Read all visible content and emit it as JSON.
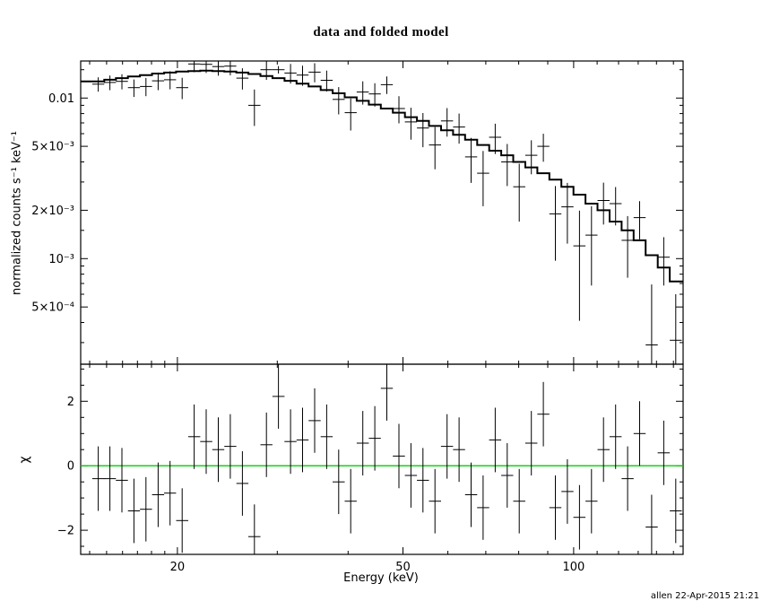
{
  "chart_data": {
    "type": "scatter",
    "title": "data and folded model",
    "xlabel": "Energy (keV)",
    "footer": "allen 22-Apr-2015 21:21",
    "legend": "none",
    "grid": "off",
    "x_axis": {
      "scale": "log",
      "range": [
        13.5,
        156
      ],
      "major_ticks": [
        {
          "value": 20,
          "label": "20"
        },
        {
          "value": 50,
          "label": "50"
        },
        {
          "value": 100,
          "label": "100"
        }
      ],
      "minor_ticks": [
        14,
        15,
        16,
        17,
        18,
        19,
        30,
        40,
        60,
        70,
        80,
        90,
        110,
        120,
        130,
        140,
        150
      ]
    },
    "spectrum_panel": {
      "ylabel": "normalized counts s⁻¹ keV⁻¹",
      "scale": "log",
      "range": [
        0.00022,
        0.017
      ],
      "major_ticks": [
        {
          "value": 0.01,
          "label": "0.01"
        },
        {
          "value": 0.005,
          "label": "5×10⁻³"
        },
        {
          "value": 0.002,
          "label": "2×10⁻³"
        },
        {
          "value": 0.001,
          "label": "10⁻³"
        },
        {
          "value": 0.0005,
          "label": "5×10⁻⁴"
        }
      ],
      "minor_ticks": [
        0.015,
        0.009,
        0.008,
        0.007,
        0.006,
        0.004,
        0.003,
        0.0015,
        0.0009,
        0.0008,
        0.0007,
        0.0006,
        0.0004,
        0.0003
      ],
      "bin_half_width_ratio": 1.0248,
      "energy": [
        14.5,
        15.2,
        15.96,
        16.76,
        17.6,
        18.49,
        19.41,
        20.39,
        21.41,
        22.48,
        23.61,
        24.79,
        26.04,
        27.34,
        28.71,
        30.15,
        31.66,
        33.25,
        34.92,
        36.67,
        38.5,
        40.43,
        42.46,
        44.59,
        46.82,
        49.17,
        51.63,
        54.22,
        56.94,
        59.79,
        62.79,
        65.94,
        69.24,
        72.71,
        76.35,
        80.18,
        84.2,
        88.42,
        92.85,
        97.5,
        102.39,
        107.52,
        112.91,
        118.57,
        124.51,
        130.75,
        137.3,
        144.18,
        151.41
      ],
      "counts": [
        0.0122,
        0.0125,
        0.0127,
        0.0116,
        0.0118,
        0.0128,
        0.013,
        0.0116,
        0.0163,
        0.0162,
        0.0157,
        0.0158,
        0.0133,
        0.009,
        0.015,
        0.015,
        0.0143,
        0.0139,
        0.0145,
        0.0129,
        0.0098,
        0.0081,
        0.0109,
        0.0106,
        0.0121,
        0.0086,
        0.0071,
        0.0065,
        0.0051,
        0.0072,
        0.0066,
        0.0043,
        0.0034,
        0.0057,
        0.004,
        0.0028,
        0.0044,
        0.005,
        0.0019,
        0.0021,
        0.0012,
        0.0014,
        0.0023,
        0.0022,
        0.0013,
        0.0018,
        0.00029,
        0.00102,
        0.00031
      ],
      "counts_err": [
        0.00125,
        0.00131,
        0.00138,
        0.00145,
        0.00153,
        0.00161,
        0.00168,
        0.00176,
        0.00182,
        0.00189,
        0.00193,
        0.00197,
        0.00201,
        0.0023,
        0.00202,
        0.0008,
        0.002,
        0.00198,
        0.00196,
        0.00192,
        0.00189,
        0.00183,
        0.0018,
        0.00175,
        0.0015,
        0.00165,
        0.0016,
        0.00156,
        0.0015,
        0.00145,
        0.0014,
        0.00134,
        0.00128,
        0.00122,
        0.00117,
        0.0011,
        0.00105,
        0.00099,
        0.00093,
        0.00086,
        0.00079,
        0.00072,
        0.00067,
        0.00059,
        0.00054,
        0.00048,
        0.0004,
        0.00034,
        0.00029
      ],
      "model": [
        0.0127,
        0.013,
        0.0133,
        0.0136,
        0.0139,
        0.0142,
        0.0144,
        0.0146,
        0.0147,
        0.0148,
        0.0147,
        0.0146,
        0.0144,
        0.0141,
        0.0137,
        0.0133,
        0.0128,
        0.0123,
        0.0118,
        0.0112,
        0.0107,
        0.0101,
        0.0096,
        0.0091,
        0.0086,
        0.0081,
        0.0076,
        0.0072,
        0.0067,
        0.0063,
        0.0059,
        0.0055,
        0.0051,
        0.0047,
        0.0044,
        0.004,
        0.0037,
        0.0034,
        0.0031,
        0.0028,
        0.0025,
        0.0022,
        0.002,
        0.0017,
        0.0015,
        0.0013,
        0.00105,
        0.00088,
        0.00072
      ]
    },
    "residual_panel": {
      "ylabel": "χ",
      "scale": "linear",
      "range": [
        -2.75,
        3.15
      ],
      "major_ticks": [
        {
          "value": 2,
          "label": "2"
        },
        {
          "value": 0,
          "label": "0"
        },
        {
          "value": -2,
          "label": "−2"
        }
      ],
      "minor_ticks": [
        -2.5,
        -1.5,
        -1,
        -0.5,
        0.5,
        1,
        1.5,
        2.5,
        3
      ],
      "chi": [
        -0.4,
        -0.4,
        -0.45,
        -1.4,
        -1.35,
        -0.9,
        -0.85,
        -1.7,
        0.9,
        0.75,
        0.5,
        0.6,
        -0.55,
        -2.2,
        0.65,
        2.15,
        0.75,
        0.8,
        1.4,
        0.9,
        -0.5,
        -1.1,
        0.7,
        0.85,
        2.4,
        0.3,
        -0.3,
        -0.45,
        -1.1,
        0.6,
        0.5,
        -0.9,
        -1.3,
        0.8,
        -0.3,
        -1.1,
        0.7,
        1.6,
        -1.3,
        -0.8,
        -1.6,
        -1.1,
        0.5,
        0.9,
        -0.4,
        1.0,
        -1.9,
        0.4,
        -1.4
      ],
      "chi_err": 1,
      "zero_line_color": "#00cc00"
    },
    "colors": {
      "frame": "#000000",
      "data": "#000000",
      "model": "#000000",
      "background": "#ffffff"
    }
  }
}
